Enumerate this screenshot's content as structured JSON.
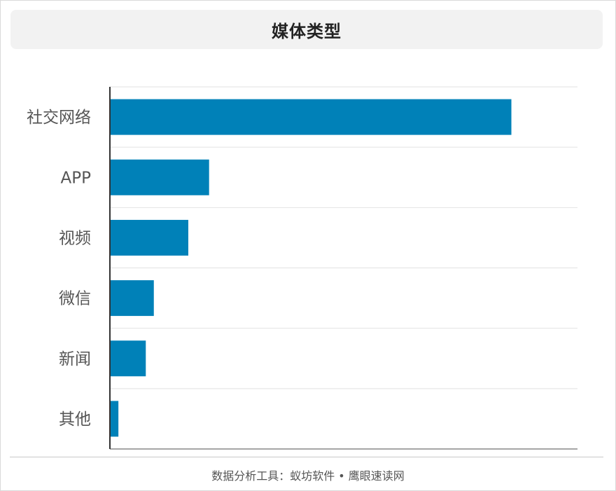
{
  "chart_data": {
    "type": "bar",
    "orientation": "horizontal",
    "title": "媒体类型",
    "categories": [
      "社交网络",
      "APP",
      "视频",
      "微信",
      "新闻",
      "其他"
    ],
    "values": [
      85,
      21,
      16.6,
      9.3,
      7.6,
      1.8
    ],
    "xlim": [
      0,
      99
    ],
    "xlabel": "",
    "ylabel": "",
    "grid": true,
    "legend": "none",
    "bar_color": "#0081b8"
  },
  "footer": "数据分析工具：蚁坊软件 • 鹰眼速读网"
}
